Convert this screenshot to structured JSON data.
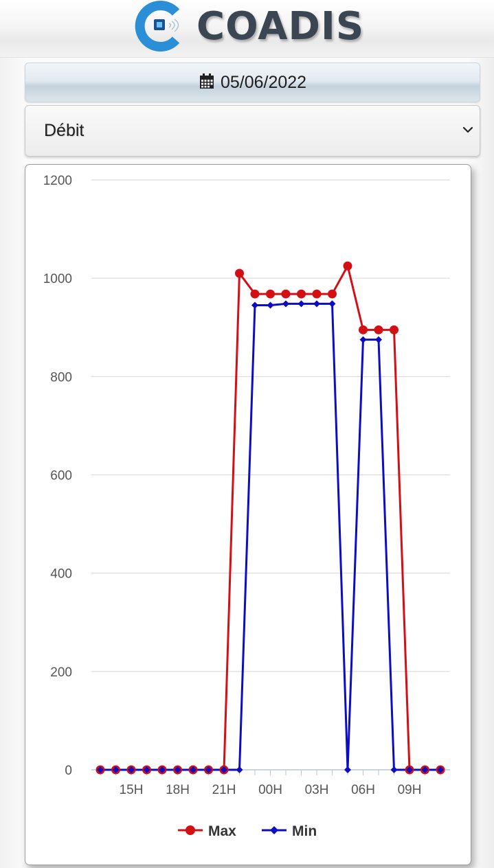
{
  "header": {
    "brand_name": "COADIS",
    "logo_icon": "coadis-chip-logo"
  },
  "date_picker": {
    "icon": "calendar-icon",
    "value": "05/06/2022"
  },
  "measure_select": {
    "value": "Débit",
    "icon": "chevron-down-icon"
  },
  "colors": {
    "max": "#d40f14",
    "min": "#0c0cc4",
    "brand": "#3b4653",
    "logo_blue": "#2a8fd6"
  },
  "chart_data": {
    "type": "line",
    "x": [
      "13H",
      "14H",
      "15H",
      "16H",
      "17H",
      "18H",
      "19H",
      "20H",
      "21H",
      "22H",
      "23H",
      "00H",
      "01H",
      "02H",
      "03H",
      "04H",
      "05H",
      "06H",
      "07H",
      "08H",
      "09H",
      "10H",
      "11H"
    ],
    "x_tick_labels": [
      "15H",
      "18H",
      "21H",
      "00H",
      "03H",
      "06H",
      "09H"
    ],
    "y_ticks": [
      0,
      200,
      400,
      600,
      800,
      1000,
      1200
    ],
    "ylim": [
      0,
      1200
    ],
    "series": [
      {
        "name": "Max",
        "color": "#d40f14",
        "marker": "circle",
        "values": [
          0,
          0,
          0,
          0,
          0,
          0,
          0,
          0,
          0,
          1010,
          968,
          968,
          968,
          968,
          968,
          968,
          1025,
          895,
          895,
          895,
          0,
          0,
          0
        ]
      },
      {
        "name": "Min",
        "color": "#0c0cc4",
        "marker": "diamond",
        "values": [
          0,
          0,
          0,
          0,
          0,
          0,
          0,
          0,
          0,
          0,
          945,
          945,
          948,
          948,
          948,
          948,
          0,
          875,
          875,
          0,
          0,
          0,
          0
        ]
      }
    ],
    "legend": "bottom",
    "grid": true
  }
}
